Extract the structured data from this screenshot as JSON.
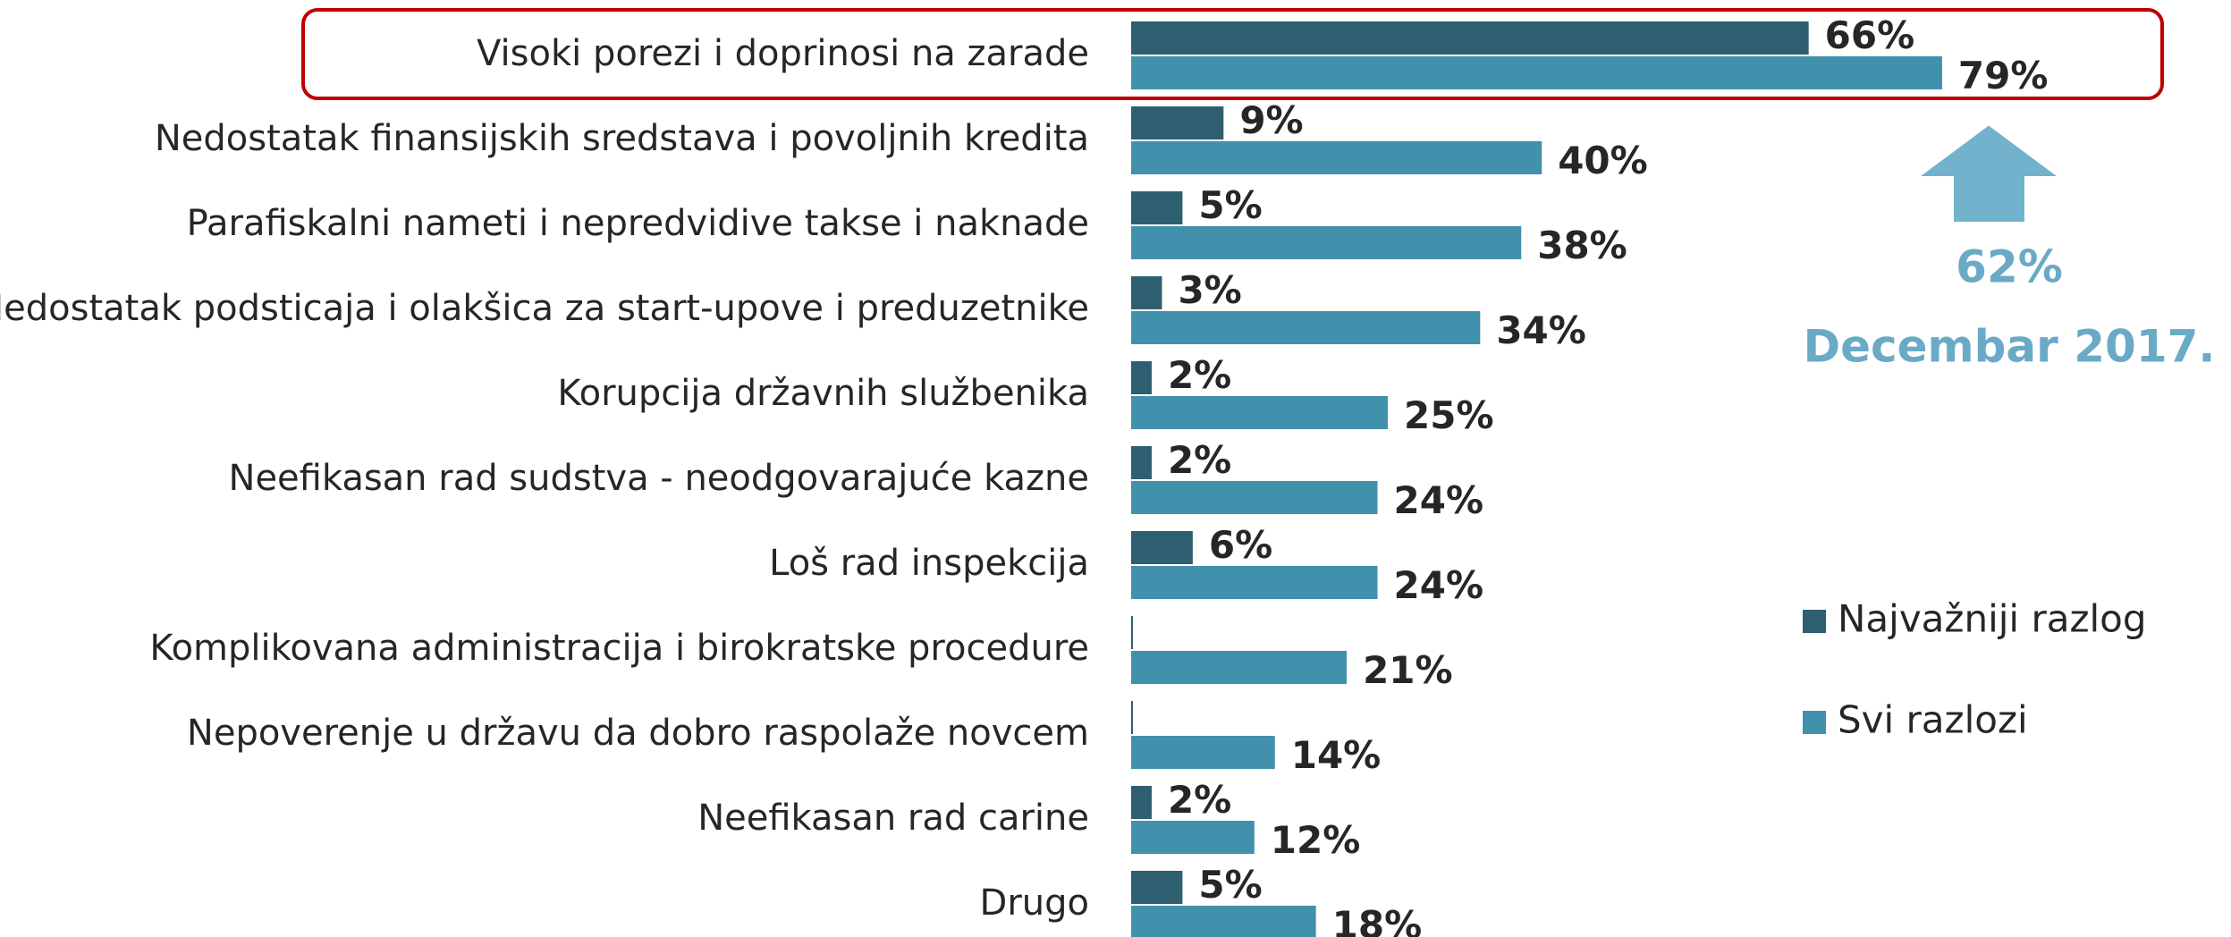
{
  "chart_data": {
    "type": "bar",
    "orientation": "horizontal",
    "categories": [
      "Visoki porezi i doprinosi na zarade",
      "Nedostatak finansijskih sredstava i povoljnih kredita",
      "Parafiskalni nameti i nepredvidive takse i naknade",
      "Nedostatak podsticaja i olakšica za start-upove i preduzetnike",
      "Korupcija državnih službenika",
      "Neefikasan rad sudstva - neodgovarajuće kazne",
      "Loš rad inspekcija",
      "Komplikovana administracija i birokratske procedure",
      "Nepoverenje u državu da dobro raspolaže novcem",
      "Neefikasan rad carine",
      "Drugo"
    ],
    "series": [
      {
        "name": "Najvažniji razlog",
        "color": "#2e5f70",
        "values": [
          66,
          9,
          5,
          3,
          2,
          2,
          6,
          0,
          0,
          2,
          5
        ],
        "value_labels": [
          "66%",
          "9%",
          "5%",
          "3%",
          "2%",
          "2%",
          "6%",
          null,
          null,
          "2%",
          "5%"
        ]
      },
      {
        "name": "Svi razlozi",
        "color": "#4190ac",
        "values": [
          79,
          40,
          38,
          34,
          25,
          24,
          24,
          21,
          14,
          12,
          18
        ],
        "value_labels": [
          "79%",
          "40%",
          "38%",
          "34%",
          "25%",
          "24%",
          "24%",
          "21%",
          "14%",
          "12%",
          "18%"
        ]
      }
    ],
    "legend": "right",
    "annotations": [
      "62%",
      "Decembar 2017."
    ]
  }
}
